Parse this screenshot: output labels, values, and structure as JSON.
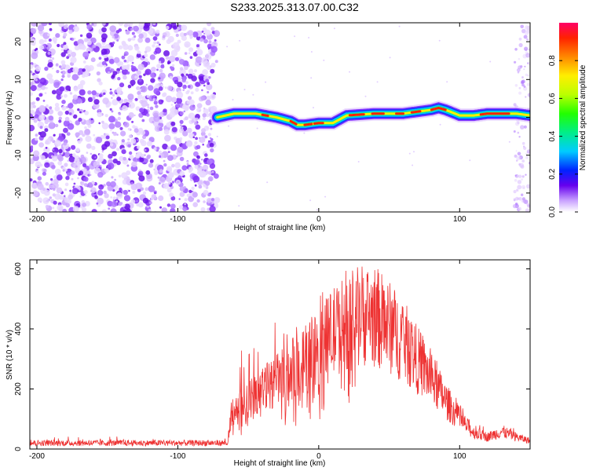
{
  "title": "S233.2025.313.07.00.C32",
  "chart_data": [
    {
      "type": "heatmap",
      "name": "spectrogram",
      "xlabel": "Height of straight line (km)",
      "ylabel": "Frequency (Hz)",
      "xlim": [
        -205,
        150
      ],
      "ylim": [
        -25,
        25
      ],
      "xticks": [
        "-200",
        "-100",
        "0",
        "100"
      ],
      "xtick_values": [
        -200,
        -100,
        0,
        100
      ],
      "yticks": [
        "-20",
        "-10",
        "0",
        "10",
        "20"
      ],
      "ytick_values": [
        -20,
        -10,
        0,
        10,
        20
      ],
      "noise_region_x": [
        -205,
        -72
      ],
      "ridge": {
        "x": [
          -72,
          -60,
          -45,
          -30,
          -20,
          -15,
          -10,
          0,
          10,
          20,
          40,
          60,
          80,
          85,
          90,
          100,
          110,
          120,
          140,
          150
        ],
        "freq_hz": [
          0,
          1,
          1,
          0,
          -1,
          -2,
          -2,
          -1.5,
          -1.5,
          0.5,
          1,
          1,
          2,
          2.5,
          2,
          0.5,
          0.5,
          1,
          1,
          0.5
        ]
      },
      "colorbar": {
        "label": "Normalized spectral amplitude",
        "ticks": [
          "0.0",
          "0.2",
          "0.4",
          "0.6",
          "0.8"
        ],
        "tick_values": [
          0,
          0.2,
          0.4,
          0.6,
          0.8
        ],
        "range": [
          0,
          1
        ]
      }
    },
    {
      "type": "line",
      "name": "snr",
      "color": "#ee3333",
      "xlabel": "Height of straight line (km)",
      "ylabel": "SNR (10 * v/v)",
      "xlim": [
        -205,
        150
      ],
      "ylim": [
        0,
        630
      ],
      "xticks": [
        "-200",
        "-100",
        "0",
        "100"
      ],
      "xtick_values": [
        -200,
        -100,
        0,
        100
      ],
      "yticks": [
        "0",
        "200",
        "400",
        "600"
      ],
      "ytick_values": [
        0,
        200,
        400,
        600
      ],
      "envelope": {
        "x": [
          -205,
          -65,
          -62,
          -55,
          -40,
          -25,
          -10,
          0,
          10,
          20,
          30,
          40,
          50,
          60,
          70,
          80,
          90,
          100,
          110,
          120,
          130,
          140,
          150
        ],
        "mean": [
          18,
          18,
          130,
          160,
          220,
          270,
          330,
          380,
          430,
          470,
          500,
          490,
          450,
          400,
          330,
          260,
          180,
          110,
          60,
          45,
          65,
          45,
          30
        ],
        "peak": [
          40,
          40,
          240,
          330,
          410,
          440,
          480,
          530,
          560,
          630,
          570,
          560,
          540,
          480,
          410,
          330,
          240,
          150,
          90,
          70,
          90,
          70,
          55
        ]
      }
    }
  ]
}
